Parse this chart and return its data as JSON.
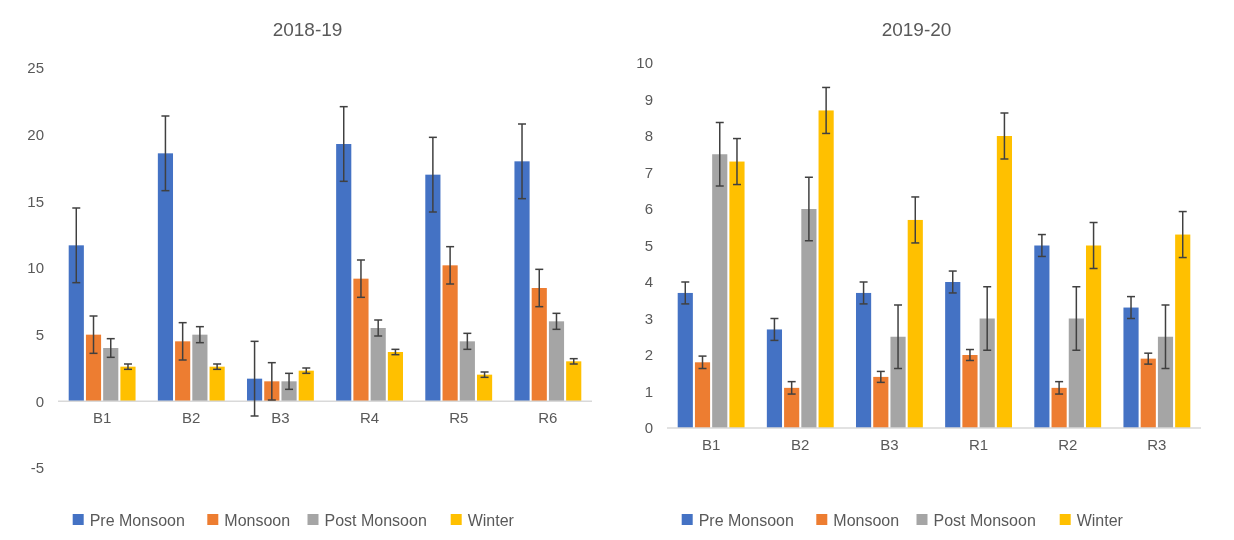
{
  "chart_data": [
    {
      "type": "bar",
      "title": "2018-19",
      "categories": [
        "B1",
        "B2",
        "B3",
        "R4",
        "R5",
        "R6"
      ],
      "ylim": [
        -5,
        25
      ],
      "yticks": [
        -5,
        0,
        5,
        10,
        15,
        20,
        25
      ],
      "grid": false,
      "legend": "bottom",
      "series": [
        {
          "name": "Pre Monsoon",
          "color": "#4472c4",
          "values": [
            11.7,
            18.6,
            1.7,
            19.3,
            17,
            18
          ],
          "errors": [
            2.8,
            2.8,
            2.8,
            2.8,
            2.8,
            2.8
          ]
        },
        {
          "name": "Monsoon",
          "color": "#ed7d31",
          "values": [
            5,
            4.5,
            1.5,
            9.2,
            10.2,
            8.5
          ],
          "errors": [
            1.4,
            1.4,
            1.4,
            1.4,
            1.4,
            1.4
          ]
        },
        {
          "name": "Post Monsoon",
          "color": "#a5a5a5",
          "values": [
            4,
            5,
            1.5,
            5.5,
            4.5,
            6
          ],
          "errors": [
            0.7,
            0.6,
            0.6,
            0.6,
            0.6,
            0.6
          ]
        },
        {
          "name": "Winter",
          "color": "#ffc000",
          "values": [
            2.6,
            2.6,
            2.3,
            3.7,
            2,
            3
          ],
          "errors": [
            0.2,
            0.2,
            0.2,
            0.2,
            0.2,
            0.2
          ]
        }
      ]
    },
    {
      "type": "bar",
      "title": "2019-20",
      "categories": [
        "B1",
        "B2",
        "B3",
        "R1",
        "R2",
        "R3"
      ],
      "ylim": [
        0,
        10
      ],
      "yticks": [
        0,
        1,
        2,
        3,
        4,
        5,
        6,
        7,
        8,
        9,
        10
      ],
      "grid": false,
      "legend": "bottom",
      "series": [
        {
          "name": "Pre Monsoon",
          "color": "#4472c4",
          "values": [
            3.7,
            2.7,
            3.7,
            4,
            5,
            3.3
          ],
          "errors": [
            0.3,
            0.3,
            0.3,
            0.3,
            0.3,
            0.3
          ]
        },
        {
          "name": "Monsoon",
          "color": "#ed7d31",
          "values": [
            1.8,
            1.1,
            1.4,
            2,
            1.1,
            1.9
          ],
          "errors": [
            0.17,
            0.17,
            0.15,
            0.15,
            0.17,
            0.15
          ]
        },
        {
          "name": "Post Monsoon",
          "color": "#a5a5a5",
          "values": [
            7.5,
            6,
            2.5,
            3,
            3,
            2.5
          ],
          "errors": [
            0.87,
            0.87,
            0.87,
            0.87,
            0.87,
            0.87
          ]
        },
        {
          "name": "Winter",
          "color": "#ffc000",
          "values": [
            7.3,
            8.7,
            5.7,
            8,
            5,
            5.3
          ],
          "errors": [
            0.63,
            0.63,
            0.63,
            0.63,
            0.63,
            0.63
          ]
        }
      ]
    }
  ]
}
